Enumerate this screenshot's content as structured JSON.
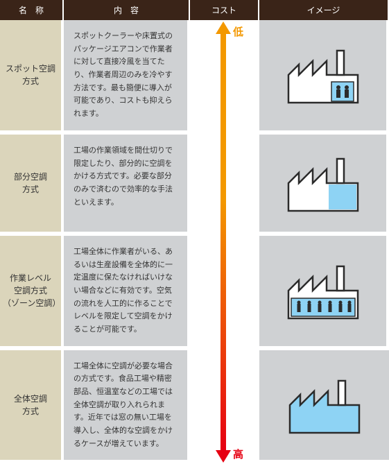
{
  "headers": {
    "name": "名　称",
    "content": "内　容",
    "cost": "コスト",
    "image": "イメージ"
  },
  "cost": {
    "low": "低",
    "high": "高",
    "color_low": "#f39800",
    "color_high": "#e60012"
  },
  "rows": [
    {
      "name": "スポット空調\n方式",
      "desc": "スポットクーラーや床置式のパッケージエアコンで作業者に対して直接冷風を当てたり、作業者周辺のみを冷やす方法です。最も簡便に導入が可能であり、コストも抑えられます。",
      "img": "spot"
    },
    {
      "name": "部分空調\n方式",
      "desc": "工場の作業領域を間仕切りで限定したり、部分的に空調をかける方式です。必要な部分のみで済むので効率的な手法といえます。",
      "img": "partial"
    },
    {
      "name": "作業レベル\n空調方式\n（ゾーン空調）",
      "desc": "工場全体に作業者がいる、あるいは生産設備を全体的に一定温度に保たなければいけない場合などに有効です。空気の流れを人工的に作ることでレベルを限定して空調をかけることが可能です。",
      "img": "zone"
    },
    {
      "name": "全体空調\n方式",
      "desc": "工場全体に空調が必要な場合の方式です。食品工場や精密部品、恒温室などの工場では全体空調が取り入れられます。近年では窓の無い工場を導入し、全体的な空調をかけるケースが増えています。",
      "img": "full"
    }
  ],
  "colors": {
    "header_bg": "#3a2418",
    "name_bg": "#dbd5bb",
    "cell_bg": "#cfd1d3",
    "cool": "#8ed3f4",
    "outline": "#2b2b2b"
  }
}
